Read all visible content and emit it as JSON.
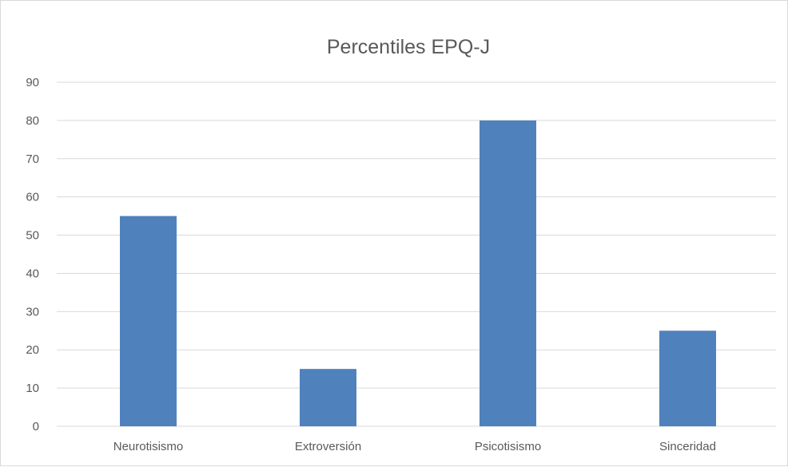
{
  "chart_data": {
    "type": "bar",
    "title": "Percentiles EPQ-J",
    "categories": [
      "Neurotisismo",
      "Extroversión",
      "Psicotisismo",
      "Sinceridad"
    ],
    "values": [
      55,
      15,
      80,
      25
    ],
    "ylim": [
      0,
      90
    ],
    "yticks": [
      0,
      10,
      20,
      30,
      40,
      50,
      60,
      70,
      80,
      90
    ],
    "grid": true,
    "legend": "none",
    "bar_color": "#4f81bd",
    "grid_color": "#d9d9d9",
    "text_color": "#595959"
  }
}
